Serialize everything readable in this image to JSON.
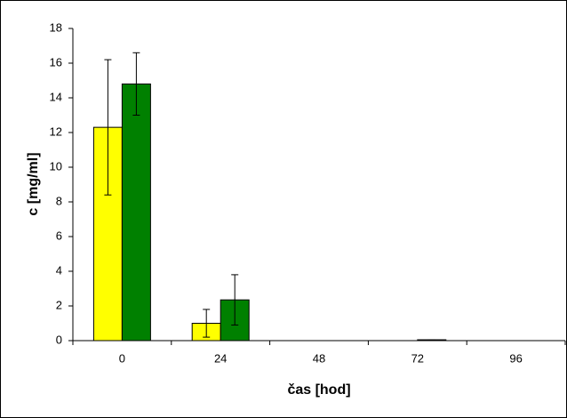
{
  "chart_data": {
    "type": "bar",
    "xlabel": "čas [hod]",
    "ylabel": "c [mg/ml]",
    "categories": [
      "0",
      "24",
      "48",
      "72",
      "96"
    ],
    "series": [
      {
        "color": "#ffff00",
        "values": [
          12.3,
          1.0,
          0,
          0,
          0
        ],
        "errors": [
          3.9,
          0.8,
          0,
          0,
          0
        ]
      },
      {
        "color": "#008000",
        "values": [
          14.8,
          2.35,
          0,
          0.05,
          0
        ],
        "errors": [
          1.8,
          1.45,
          0,
          0,
          0
        ]
      }
    ],
    "ylim": [
      0,
      18
    ],
    "yticks": [
      0,
      2,
      4,
      6,
      8,
      10,
      12,
      14,
      16,
      18
    ]
  }
}
